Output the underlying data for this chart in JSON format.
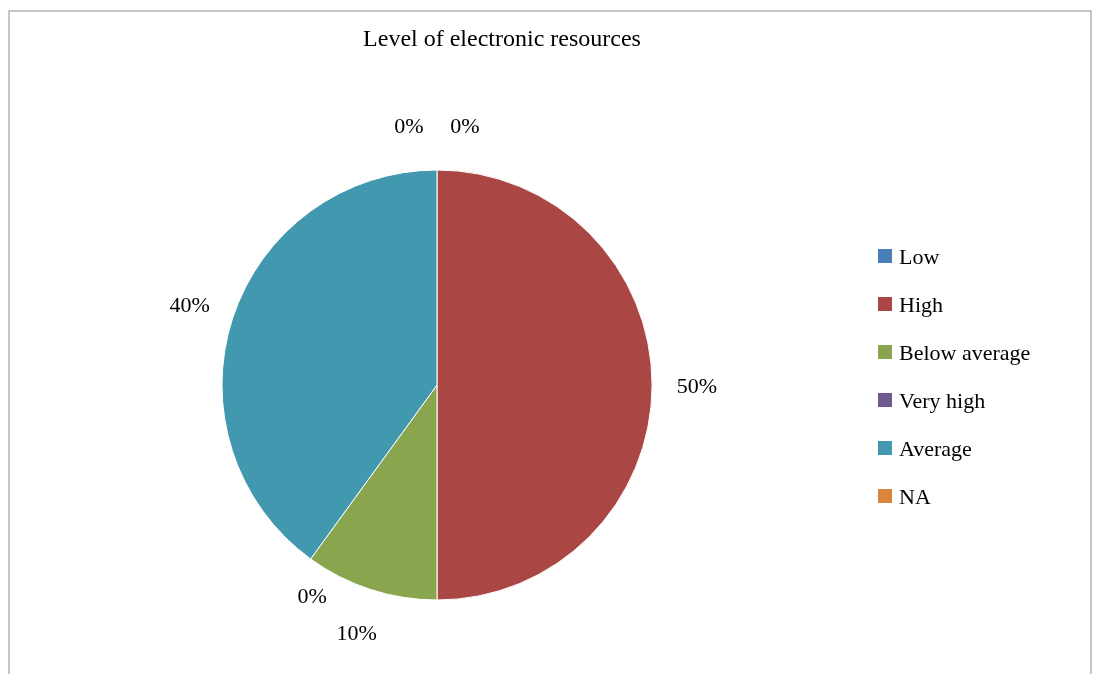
{
  "chart_data": {
    "type": "pie",
    "title": "Level of electronic resources",
    "categories": [
      "Low",
      "High",
      "Below average",
      "Very high",
      "Average",
      "NA"
    ],
    "values": [
      0,
      50,
      10,
      0,
      40,
      0
    ],
    "value_labels": [
      "0%",
      "50%",
      "10%",
      "0%",
      "40%",
      "0%"
    ],
    "colors": [
      "#4a7ebb",
      "#aa4643",
      "#89a54e",
      "#71588f",
      "#4198af",
      "#db843d"
    ],
    "legend": "right"
  }
}
